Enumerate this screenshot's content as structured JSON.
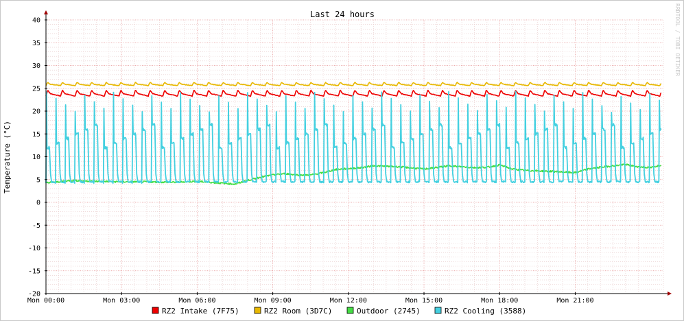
{
  "chart_data": {
    "type": "line",
    "title": "Last 24 hours",
    "ylabel": "Temperature (°C)",
    "xlabel": "",
    "watermark": "RRDTOOL / TOBI OETIKER",
    "ylim": [
      -20,
      40
    ],
    "y_ticks": [
      40,
      35,
      30,
      25,
      20,
      15,
      10,
      5,
      0,
      -5,
      -10,
      -15,
      -20
    ],
    "y_tick_labels": [
      "40",
      "35",
      "30",
      "25",
      "20",
      "15",
      "10",
      "5",
      "0",
      "-5",
      "-10",
      "-15",
      "-20"
    ],
    "x_range_hours": [
      0,
      24.5
    ],
    "x_ticks": [
      0,
      3,
      6,
      9,
      12,
      15,
      18,
      21
    ],
    "x_tick_labels": [
      "Mon 00:00",
      "Mon 03:00",
      "Mon 06:00",
      "Mon 09:00",
      "Mon 12:00",
      "Mon 15:00",
      "Mon 18:00",
      "Mon 21:00"
    ],
    "grid": true,
    "legend_position": "bottom",
    "series": [
      {
        "name": "RZ2 Intake (7F75)",
        "color": "#ee0000",
        "pattern": "sawtooth",
        "low": 23.3,
        "high": 24.6,
        "period_hours": 0.58,
        "x": [
          0,
          6,
          12,
          18,
          24.4
        ],
        "values": [
          24.0,
          24.0,
          24.0,
          24.0,
          24.0
        ]
      },
      {
        "name": "RZ2 Room (3D7C)",
        "color": "#e8b800",
        "pattern": "sawtooth",
        "low": 25.6,
        "high": 26.3,
        "period_hours": 0.58,
        "x": [
          0,
          6,
          12,
          18,
          24.4
        ],
        "values": [
          25.9,
          25.9,
          25.9,
          25.9,
          25.9
        ]
      },
      {
        "name": "Outdoor (2745)",
        "color": "#44dd44",
        "pattern": "smooth",
        "x": [
          0,
          0.5,
          1,
          2,
          3,
          4,
          5,
          6,
          7,
          7.5,
          8,
          8.5,
          9,
          9.5,
          10,
          10.5,
          11,
          11.5,
          12,
          12.5,
          13,
          14,
          15,
          16,
          17,
          17.5,
          18,
          18.5,
          19,
          20,
          21,
          21.5,
          22,
          22.5,
          23,
          23.5,
          24,
          24.4
        ],
        "values": [
          4.3,
          4.5,
          4.8,
          4.6,
          4.5,
          4.5,
          4.4,
          4.6,
          4.2,
          4.0,
          4.8,
          5.5,
          6.0,
          6.3,
          6.0,
          6.0,
          6.5,
          7.2,
          7.4,
          7.6,
          8.0,
          7.8,
          7.3,
          8.0,
          7.6,
          7.7,
          8.2,
          7.3,
          7.0,
          6.8,
          6.5,
          7.3,
          7.7,
          8.0,
          8.3,
          7.8,
          7.6,
          8.2
        ]
      },
      {
        "name": "RZ2 Cooling (3588)",
        "color": "#44d0e0",
        "pattern": "cycling",
        "base_low": 4.2,
        "plateau_mid": 14,
        "period_hours": 0.38,
        "x": [
          0,
          6,
          12,
          18,
          24.4
        ],
        "values": [
          27.0,
          26.8,
          26.9,
          27.2,
          26.5
        ]
      }
    ]
  }
}
